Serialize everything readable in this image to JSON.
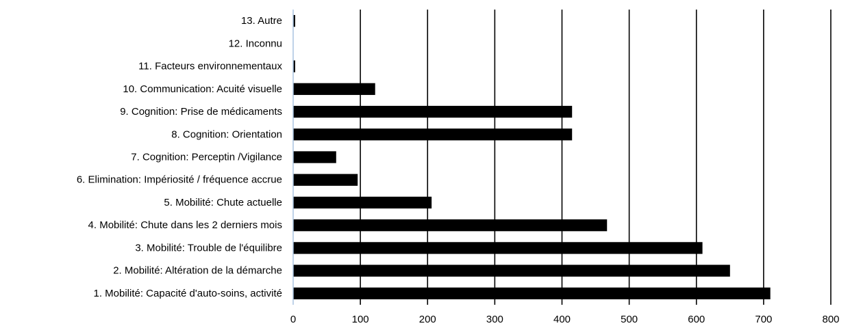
{
  "chart_data": {
    "type": "bar",
    "orientation": "horizontal",
    "title": "",
    "xlabel": "",
    "ylabel": "",
    "categories": [
      "1. Mobilité: Capacité d'auto-soins, activité",
      "2. Mobilité: Altération de la démarche",
      "3. Mobilité: Trouble de l'équilibre",
      "4. Mobilité: Chute dans les 2 derniers mois",
      "5. Mobilité: Chute actuelle",
      "6. Elimination: Impériosité / fréquence accrue",
      "7. Cognition: Perceptin /Vigilance",
      "8. Cognition: Orientation",
      "9. Cognition: Prise de médicaments",
      "10. Communication: Acuité visuelle",
      "11. Facteurs environnementaux",
      "12. Inconnu",
      "13. Autre"
    ],
    "values": [
      710,
      650,
      609,
      467,
      206,
      96,
      64,
      415,
      415,
      122,
      3,
      0,
      3
    ],
    "xlim": [
      0,
      800
    ],
    "xticks": [
      "0",
      "100",
      "200",
      "300",
      "400",
      "500",
      "600",
      "700",
      "800"
    ],
    "grid": "vertical",
    "legend": "none",
    "bar_color": "#000000",
    "axis_color": "#a9c4e0",
    "grid_color": "#000000"
  }
}
